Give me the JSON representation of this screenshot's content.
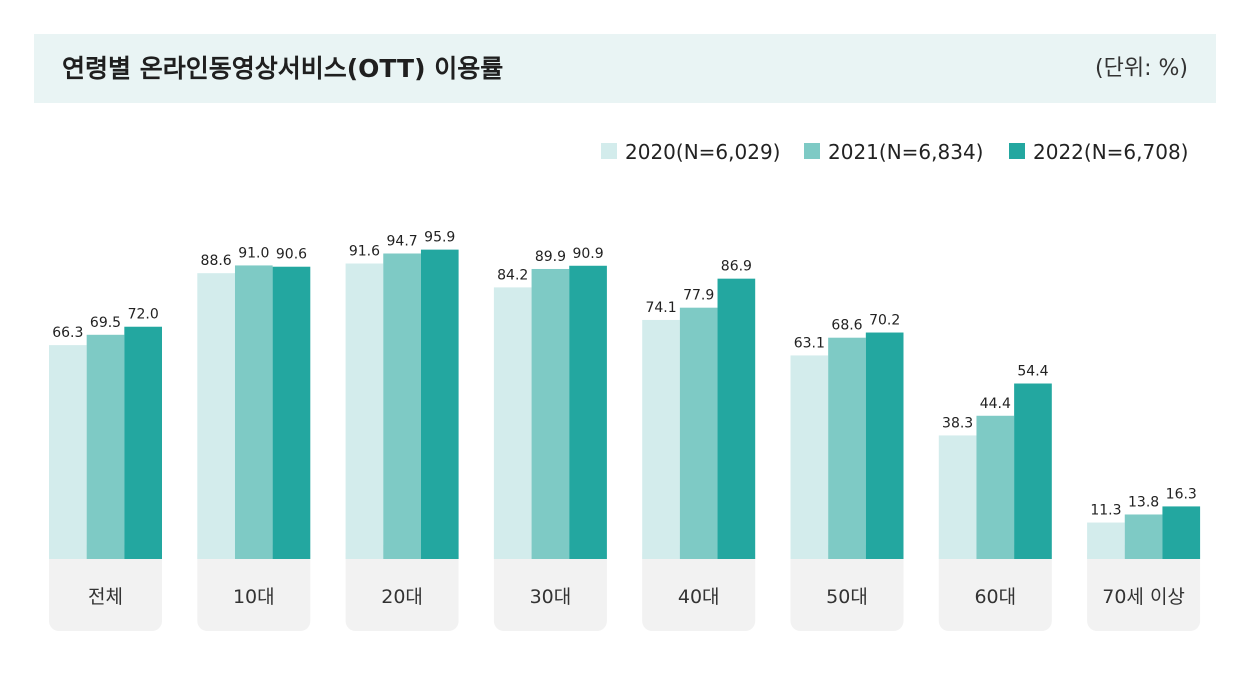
{
  "header": {
    "title": "연령별 온라인동영상서비스(OTT) 이용률",
    "unit": "(단위: %)"
  },
  "colors": {
    "header_background": "#e9f4f4",
    "category_box": "#f2f2f2",
    "series_2020": "#d3ecec",
    "series_2021": "#7ecac5",
    "series_2022": "#23a7a0"
  },
  "chart_data": {
    "type": "bar",
    "title": "연령별 온라인동영상서비스(OTT) 이용률",
    "unit": "(단위: %)",
    "xlabel": "",
    "ylabel": "",
    "ylim": [
      0,
      100
    ],
    "grid": false,
    "legend_position": "top-right",
    "categories": [
      "전체",
      "10대",
      "20대",
      "30대",
      "40대",
      "50대",
      "60대",
      "70세 이상"
    ],
    "series": [
      {
        "name": "2020(N=6,029)",
        "color": "#d3ecec",
        "values": [
          66.3,
          88.6,
          91.6,
          84.2,
          74.1,
          63.1,
          38.3,
          11.3
        ],
        "labels": [
          "66.3",
          "88.6",
          "91.6",
          "84.2",
          "74.1",
          "63.1",
          "38.3",
          "11.3"
        ]
      },
      {
        "name": "2021(N=6,834)",
        "color": "#7ecac5",
        "values": [
          69.5,
          91.0,
          94.7,
          89.9,
          77.9,
          68.6,
          44.4,
          13.8
        ],
        "labels": [
          "69.5",
          "91.0",
          "94.7",
          "89.9",
          "77.9",
          "68.6",
          "44.4",
          "13.8"
        ]
      },
      {
        "name": "2022(N=6,708)",
        "color": "#23a7a0",
        "values": [
          72.0,
          90.6,
          95.9,
          90.9,
          86.9,
          70.2,
          54.4,
          16.3
        ],
        "labels": [
          "72.0",
          "90.6",
          "95.9",
          "90.9",
          "86.9",
          "70.2",
          "54.4",
          "16.3"
        ]
      }
    ]
  }
}
